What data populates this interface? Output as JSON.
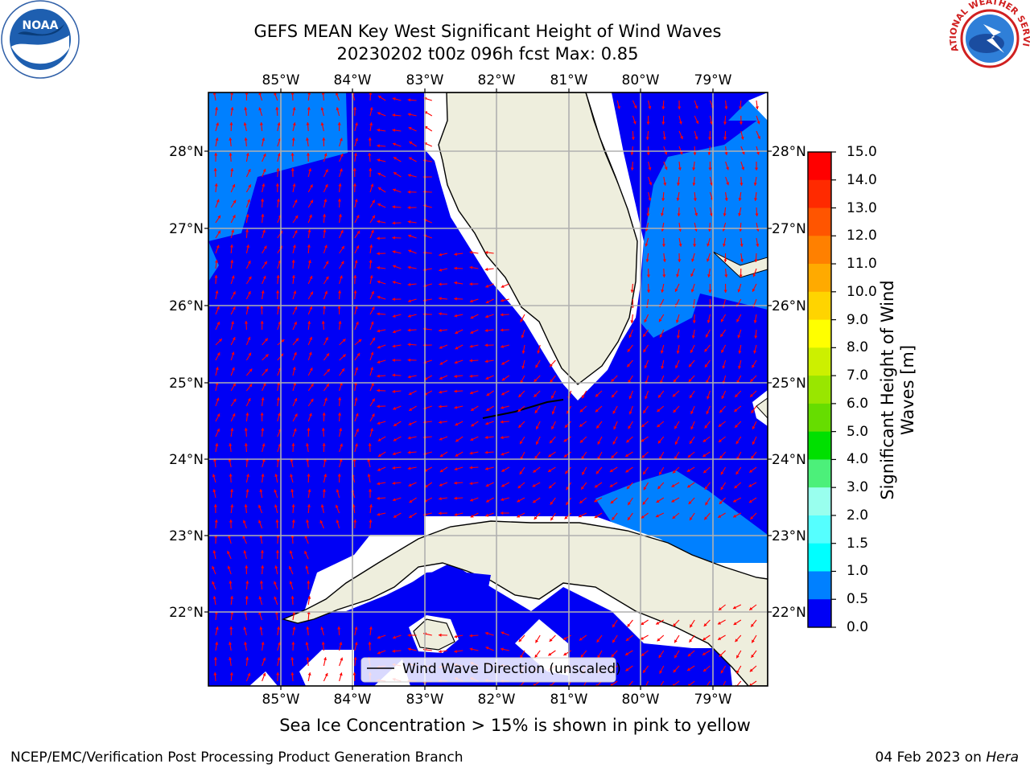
{
  "title": {
    "line1": "GEFS MEAN Key West Significant Height of Wind Waves",
    "line2": "20230202 t00z 096h fcst   Max: 0.85"
  },
  "map": {
    "lon_labels": [
      "85°W",
      "84°W",
      "83°W",
      "82°W",
      "81°W",
      "80°W",
      "79°W"
    ],
    "lat_labels": [
      "28°N",
      "27°N",
      "26°N",
      "25°N",
      "24°N",
      "23°N",
      "22°N"
    ],
    "legend_label": "Wind Wave Direction (unscaled)",
    "colors": {
      "ocean_low": "#0000f5",
      "ocean_mid": "#0080ff",
      "land": "#eeeedd",
      "arrow": "#ff0000",
      "grid": "#b0b0b0"
    }
  },
  "colorbar": {
    "title": "Significant Height of Wind Waves [m]",
    "ticks": [
      "15.0",
      "14.0",
      "13.0",
      "12.0",
      "11.0",
      "10.0",
      "9.0",
      "8.0",
      "7.0",
      "6.0",
      "5.0",
      "4.0",
      "3.0",
      "2.0",
      "1.5",
      "1.0",
      "0.5",
      "0.0"
    ],
    "colors_top_to_bottom": [
      "#ff0000",
      "#ff2a00",
      "#ff5500",
      "#ff8000",
      "#ffaa00",
      "#ffd400",
      "#ffff00",
      "#ccf000",
      "#99e600",
      "#66dd00",
      "#00e000",
      "#4cf07a",
      "#99ffee",
      "#55ffff",
      "#00ffff",
      "#0080ff",
      "#0000f5"
    ]
  },
  "logos": {
    "noaa": "NOAA",
    "nws": "NATIONAL WEATHER SERVICE"
  },
  "ice_note": "Sea Ice Concentration > 15% is shown in pink to yellow",
  "footer": {
    "left": "NCEP/EMC/Verification Post Processing Product Generation Branch",
    "date": "04 Feb 2023 on",
    "host": "Hera"
  }
}
